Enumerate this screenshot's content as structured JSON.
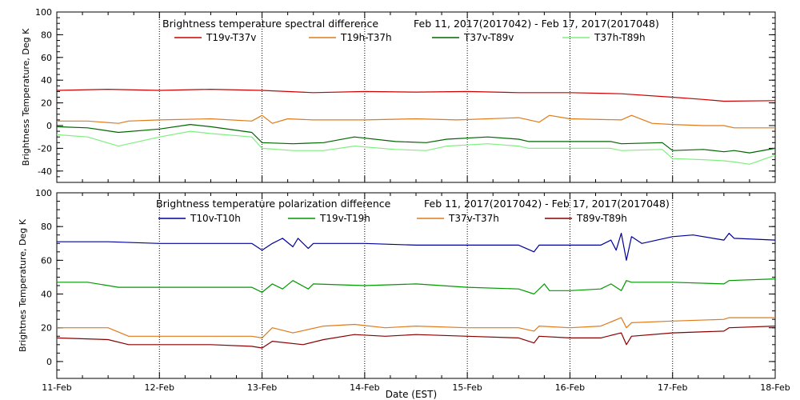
{
  "chart_data": [
    {
      "type": "line",
      "title": "Brightness temperature spectral difference",
      "date_range": "Feb 11, 2017(2017042) - Feb 17, 2017(2017048)",
      "ylabel": "Brightness Temperature, Deg K",
      "ylim": [
        -50,
        100
      ],
      "yticks": [
        -40,
        -20,
        0,
        20,
        40,
        60,
        80,
        100
      ],
      "grid": "vertical dotted",
      "legend_position": "top",
      "x_days": [
        0,
        1,
        2,
        3,
        4,
        5,
        6,
        7
      ],
      "series": [
        {
          "name": "T19v-T37v",
          "color": "#cc0000",
          "points": [
            [
              0,
              31
            ],
            [
              0.5,
              32
            ],
            [
              1.0,
              31
            ],
            [
              1.5,
              32
            ],
            [
              2.0,
              31
            ],
            [
              2.5,
              29
            ],
            [
              3.0,
              30
            ],
            [
              3.5,
              29.5
            ],
            [
              4.0,
              30
            ],
            [
              4.5,
              29
            ],
            [
              5.0,
              29
            ],
            [
              5.5,
              28
            ],
            [
              6.0,
              25
            ],
            [
              6.3,
              23
            ],
            [
              6.5,
              21.5
            ],
            [
              7.0,
              22
            ]
          ]
        },
        {
          "name": "T19h-T37h",
          "color": "#e07a1a",
          "points": [
            [
              0,
              4
            ],
            [
              0.3,
              4
            ],
            [
              0.6,
              2
            ],
            [
              0.7,
              4
            ],
            [
              1.0,
              5
            ],
            [
              1.5,
              6
            ],
            [
              1.9,
              4
            ],
            [
              2.0,
              9
            ],
            [
              2.1,
              2
            ],
            [
              2.25,
              6
            ],
            [
              2.5,
              5
            ],
            [
              3.0,
              5
            ],
            [
              3.5,
              6
            ],
            [
              3.9,
              5
            ],
            [
              4.5,
              7
            ],
            [
              4.7,
              3
            ],
            [
              4.8,
              9
            ],
            [
              5.0,
              6
            ],
            [
              5.5,
              5
            ],
            [
              5.6,
              9
            ],
            [
              5.8,
              2
            ],
            [
              6.0,
              1
            ],
            [
              6.3,
              0
            ],
            [
              6.5,
              0
            ],
            [
              6.6,
              -2
            ],
            [
              7.0,
              -2
            ]
          ]
        },
        {
          "name": "T37v-T89v",
          "color": "#006600",
          "points": [
            [
              0,
              -1
            ],
            [
              0.3,
              -2
            ],
            [
              0.6,
              -6
            ],
            [
              1.0,
              -3
            ],
            [
              1.3,
              1
            ],
            [
              1.5,
              -1
            ],
            [
              1.9,
              -6
            ],
            [
              2.0,
              -15
            ],
            [
              2.3,
              -16
            ],
            [
              2.6,
              -15
            ],
            [
              2.9,
              -10
            ],
            [
              3.3,
              -14
            ],
            [
              3.6,
              -15
            ],
            [
              3.8,
              -12
            ],
            [
              4.2,
              -10
            ],
            [
              4.5,
              -12
            ],
            [
              4.6,
              -14
            ],
            [
              5.0,
              -14
            ],
            [
              5.4,
              -14
            ],
            [
              5.5,
              -16
            ],
            [
              5.9,
              -15
            ],
            [
              6.0,
              -22
            ],
            [
              6.3,
              -21
            ],
            [
              6.5,
              -23
            ],
            [
              6.6,
              -22
            ],
            [
              6.75,
              -24
            ],
            [
              7.0,
              -20
            ]
          ]
        },
        {
          "name": "T37h-T89h",
          "color": "#7ef07e",
          "points": [
            [
              0,
              -8
            ],
            [
              0.3,
              -10
            ],
            [
              0.6,
              -18
            ],
            [
              0.8,
              -14
            ],
            [
              1.0,
              -10
            ],
            [
              1.3,
              -5
            ],
            [
              1.5,
              -7
            ],
            [
              1.9,
              -10
            ],
            [
              2.0,
              -20
            ],
            [
              2.3,
              -22
            ],
            [
              2.6,
              -22
            ],
            [
              2.9,
              -18
            ],
            [
              3.3,
              -21
            ],
            [
              3.6,
              -22
            ],
            [
              3.8,
              -18
            ],
            [
              4.2,
              -16
            ],
            [
              4.5,
              -18
            ],
            [
              4.6,
              -20
            ],
            [
              5.0,
              -20
            ],
            [
              5.4,
              -20
            ],
            [
              5.5,
              -22
            ],
            [
              5.9,
              -21
            ],
            [
              6.0,
              -29
            ],
            [
              6.3,
              -30
            ],
            [
              6.5,
              -31
            ],
            [
              6.6,
              -32
            ],
            [
              6.75,
              -34
            ],
            [
              7.0,
              -26
            ]
          ]
        }
      ]
    },
    {
      "type": "line",
      "title": "Brightness temperature polarization difference",
      "date_range": "Feb 11, 2017(2017042) - Feb 17, 2017(2017048)",
      "ylabel": "Brightnes Temperature, Deg K",
      "xlabel": "Date (EST)",
      "ylim": [
        -10,
        100
      ],
      "yticks": [
        0,
        20,
        40,
        60,
        80,
        100
      ],
      "grid": "vertical dotted",
      "legend_position": "top",
      "x_days": [
        0,
        1,
        2,
        3,
        4,
        5,
        6,
        7
      ],
      "xticks": [
        "11-Feb",
        "12-Feb",
        "13-Feb",
        "14-Feb",
        "15-Feb",
        "16-Feb",
        "17-Feb",
        "18-Feb"
      ],
      "series": [
        {
          "name": "T10v-T10h",
          "color": "#000099",
          "points": [
            [
              0,
              71
            ],
            [
              0.5,
              71
            ],
            [
              1.0,
              70
            ],
            [
              1.5,
              70
            ],
            [
              1.9,
              70
            ],
            [
              2.0,
              66
            ],
            [
              2.1,
              70
            ],
            [
              2.2,
              73
            ],
            [
              2.3,
              68
            ],
            [
              2.35,
              73
            ],
            [
              2.45,
              67
            ],
            [
              2.5,
              70
            ],
            [
              3.0,
              70
            ],
            [
              3.5,
              69
            ],
            [
              4.0,
              69
            ],
            [
              4.5,
              69
            ],
            [
              4.65,
              65
            ],
            [
              4.7,
              69
            ],
            [
              5.0,
              69
            ],
            [
              5.3,
              69
            ],
            [
              5.4,
              72
            ],
            [
              5.45,
              66
            ],
            [
              5.5,
              76
            ],
            [
              5.55,
              60
            ],
            [
              5.6,
              74
            ],
            [
              5.7,
              70
            ],
            [
              6.0,
              74
            ],
            [
              6.2,
              75
            ],
            [
              6.5,
              72
            ],
            [
              6.55,
              76
            ],
            [
              6.6,
              73
            ],
            [
              7.0,
              72
            ]
          ]
        },
        {
          "name": "T19v-T19h",
          "color": "#009900",
          "points": [
            [
              0,
              47
            ],
            [
              0.3,
              47
            ],
            [
              0.6,
              44
            ],
            [
              1.0,
              44
            ],
            [
              1.5,
              44
            ],
            [
              1.9,
              44
            ],
            [
              2.0,
              41
            ],
            [
              2.1,
              46
            ],
            [
              2.2,
              43
            ],
            [
              2.3,
              48
            ],
            [
              2.45,
              43
            ],
            [
              2.5,
              46
            ],
            [
              3.0,
              45
            ],
            [
              3.5,
              46
            ],
            [
              4.0,
              44
            ],
            [
              4.5,
              43
            ],
            [
              4.65,
              40
            ],
            [
              4.75,
              46
            ],
            [
              4.8,
              42
            ],
            [
              5.0,
              42
            ],
            [
              5.3,
              43
            ],
            [
              5.4,
              46
            ],
            [
              5.5,
              42
            ],
            [
              5.55,
              48
            ],
            [
              5.6,
              47
            ],
            [
              6.0,
              47
            ],
            [
              6.5,
              46
            ],
            [
              6.55,
              48
            ],
            [
              7.0,
              49
            ]
          ]
        },
        {
          "name": "T37v-T37h",
          "color": "#e07a1a",
          "points": [
            [
              0,
              20
            ],
            [
              0.5,
              20
            ],
            [
              0.7,
              15
            ],
            [
              1.0,
              15
            ],
            [
              1.5,
              15
            ],
            [
              1.9,
              15
            ],
            [
              2.0,
              14
            ],
            [
              2.1,
              20
            ],
            [
              2.3,
              17
            ],
            [
              2.6,
              21
            ],
            [
              2.9,
              22
            ],
            [
              3.2,
              20
            ],
            [
              3.5,
              21
            ],
            [
              4.0,
              20
            ],
            [
              4.5,
              20
            ],
            [
              4.65,
              18
            ],
            [
              4.7,
              21
            ],
            [
              5.0,
              20
            ],
            [
              5.3,
              21
            ],
            [
              5.5,
              26
            ],
            [
              5.55,
              20
            ],
            [
              5.6,
              23
            ],
            [
              6.0,
              24
            ],
            [
              6.5,
              25
            ],
            [
              6.55,
              26
            ],
            [
              7.0,
              26
            ]
          ]
        },
        {
          "name": "T89v-T89h",
          "color": "#880000",
          "points": [
            [
              0,
              14
            ],
            [
              0.5,
              13
            ],
            [
              0.7,
              10
            ],
            [
              1.0,
              10
            ],
            [
              1.5,
              10
            ],
            [
              1.9,
              9
            ],
            [
              2.0,
              8
            ],
            [
              2.1,
              12
            ],
            [
              2.4,
              10
            ],
            [
              2.6,
              13
            ],
            [
              2.9,
              16
            ],
            [
              3.2,
              15
            ],
            [
              3.5,
              16
            ],
            [
              4.0,
              15
            ],
            [
              4.5,
              14
            ],
            [
              4.65,
              11
            ],
            [
              4.7,
              15
            ],
            [
              5.0,
              14
            ],
            [
              5.3,
              14
            ],
            [
              5.5,
              17
            ],
            [
              5.55,
              10
            ],
            [
              5.6,
              15
            ],
            [
              6.0,
              17
            ],
            [
              6.5,
              18
            ],
            [
              6.55,
              20
            ],
            [
              7.0,
              21
            ]
          ]
        }
      ]
    }
  ]
}
